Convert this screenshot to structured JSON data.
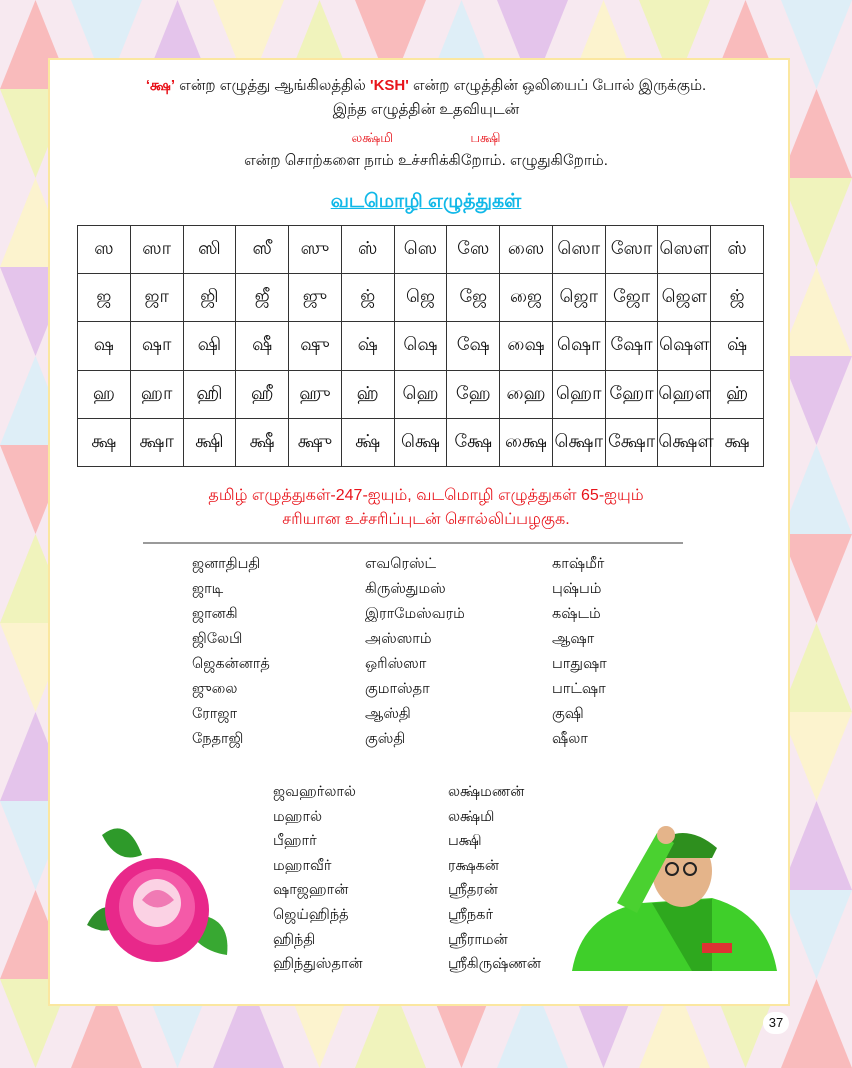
{
  "intro": {
    "line1_letter": "‘க்ஷ’",
    "line1_a": " என்ற எழுத்து ஆங்கிலத்தில் ",
    "line1_ksh": "'KSH'",
    "line1_b": " என்ற எழுத்தின் ஒலியைப் போல் இருக்கும்.",
    "line2": "இந்த எழுத்தின் உதவியுடன்",
    "example_words": [
      "லக்ஷ்மி",
      "பக்ஷி"
    ],
    "line3": "என்ற சொற்களை நாம் உச்சரிக்கிறோம். எழுதுகிறோம்."
  },
  "heading": "வடமொழி எழுத்துகள்",
  "letter_table": [
    [
      "ஸ",
      "ஸா",
      "ஸி",
      "ஸீ",
      "ஸு",
      "ஸ்",
      "ஸெ",
      "ஸே",
      "ஸை",
      "ஸொ",
      "ஸோ",
      "ஸௌ",
      "ஸ்"
    ],
    [
      "ஜ",
      "ஜா",
      "ஜி",
      "ஜீ",
      "ஜு",
      "ஜ்",
      "ஜெ",
      "ஜே",
      "ஜை",
      "ஜொ",
      "ஜோ",
      "ஜௌ",
      "ஜ்"
    ],
    [
      "ஷ",
      "ஷா",
      "ஷி",
      "ஷீ",
      "ஷு",
      "ஷ்",
      "ஷெ",
      "ஷே",
      "ஷை",
      "ஷொ",
      "ஷோ",
      "ஷௌ",
      "ஷ்"
    ],
    [
      "ஹ",
      "ஹா",
      "ஹி",
      "ஹீ",
      "ஹு",
      "ஹ்",
      "ஹெ",
      "ஹே",
      "ஹை",
      "ஹொ",
      "ஹோ",
      "ஹௌ",
      "ஹ்"
    ],
    [
      "க்ஷ",
      "க்ஷா",
      "க்ஷி",
      "க்ஷீ",
      "க்ஷு",
      "க்ஷ்",
      "க்ஷெ",
      "க்ஷே",
      "க்ஷை",
      "க்ஷொ",
      "க்ஷோ",
      "க்ஷௌ",
      "க்ஷ"
    ]
  ],
  "instruction": {
    "line1": "தமிழ் எழுத்துகள்-247-ஐயும், வடமொழி எழுத்துகள் 65-ஐயும்",
    "line2": "சரியான உச்சரிப்புடன் சொல்லிப்பழகுக."
  },
  "word_columns": [
    [
      "ஜனாதிபதி",
      "ஜாடி",
      "ஜானகி",
      "ஜிலேபி",
      "ஜெகன்னாத்",
      "ஜுலை",
      "ரோஜா",
      "நேதாஜி"
    ],
    [
      "எவரெஸ்ட்",
      "கிருஸ்துமஸ்",
      "இராமேஸ்வரம்",
      "அஸ்ஸாம்",
      "ஒரிஸ்ஸா",
      "குமாஸ்தா",
      "ஆஸ்தி",
      "குஸ்தி"
    ],
    [
      "காஷ்மீர்",
      "புஷ்பம்",
      "கஷ்டம்",
      "ஆஷா",
      "பாதுஷா",
      "பாட்ஷா",
      "குஷி",
      "ஷீலா"
    ]
  ],
  "word_columns_2": [
    [
      "ஜவஹர்லால்",
      "மஹால்",
      "பீஹார்",
      "மஹாவீர்",
      "ஷாஜஹான்",
      "ஜெய்ஹிந்த்",
      "ஹிந்தி",
      "ஹிந்துஸ்தான்"
    ],
    [
      "லக்ஷ்மணன்",
      "லக்ஷ்மி",
      "பக்ஷி",
      "ரக்ஷகன்",
      "ஸ்ரீதரன்",
      "ஸ்ரீநகர்",
      "ஸ்ரீராமன்",
      "ஸ்ரீகிருஷ்ணன்"
    ]
  ],
  "page_number": "37",
  "colors": {
    "red": "#e8141b",
    "heading": "#11b8e8",
    "border": "#fbe7a0"
  },
  "images": [
    "rose-image",
    "saluting-leader-image"
  ]
}
